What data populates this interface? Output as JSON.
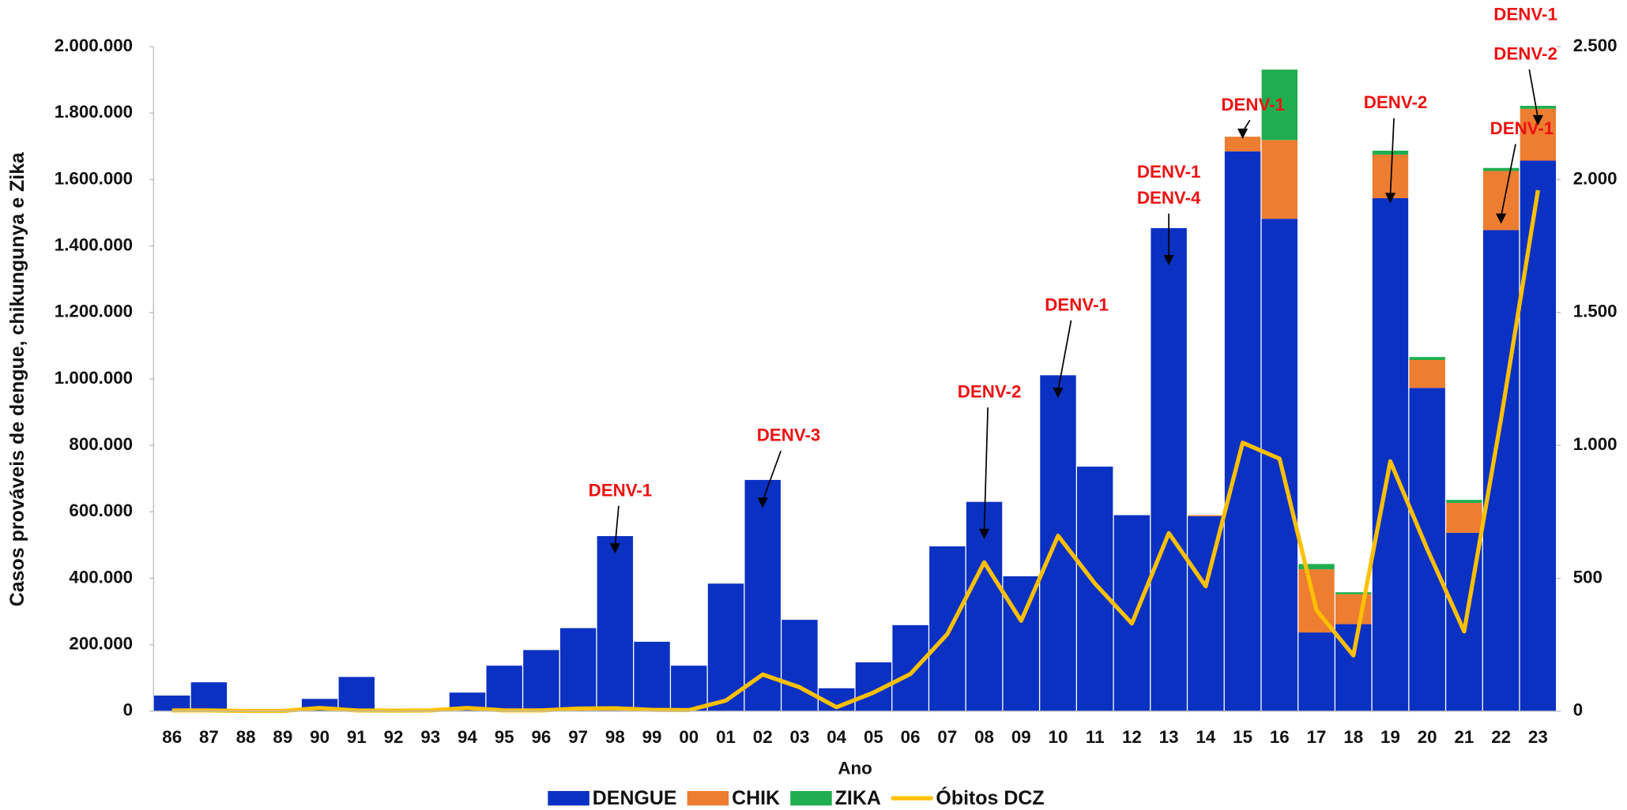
{
  "chart_data": {
    "type": "bar",
    "stacked": true,
    "x_label": "Ano",
    "y_label": "Casos prováveis de dengue, chikungunya e Zika",
    "categories": [
      "86",
      "87",
      "88",
      "89",
      "90",
      "91",
      "92",
      "93",
      "94",
      "95",
      "96",
      "97",
      "98",
      "99",
      "00",
      "01",
      "02",
      "03",
      "04",
      "05",
      "06",
      "07",
      "08",
      "09",
      "10",
      "11",
      "12",
      "13",
      "14",
      "15",
      "16",
      "17",
      "18",
      "19",
      "20",
      "21",
      "22",
      "23"
    ],
    "series": [
      {
        "name": "DENGUE",
        "type": "bar",
        "color": "#0a31c2",
        "values": [
          47000,
          87000,
          0,
          0,
          37000,
          103000,
          0,
          6000,
          56000,
          137000,
          184000,
          250000,
          527000,
          209000,
          137000,
          384000,
          696000,
          275000,
          69000,
          147000,
          259000,
          496000,
          630000,
          406000,
          1011000,
          736000,
          590000,
          1454000,
          587000,
          1685000,
          1482000,
          237000,
          262000,
          1544000,
          973000,
          537000,
          1448000,
          1657000
        ]
      },
      {
        "name": "CHIK",
        "type": "bar",
        "color": "#ed7d31",
        "values": [
          null,
          null,
          null,
          null,
          null,
          null,
          null,
          null,
          null,
          null,
          null,
          null,
          null,
          null,
          null,
          null,
          null,
          null,
          null,
          null,
          null,
          null,
          null,
          null,
          null,
          null,
          null,
          null,
          3000,
          44000,
          237000,
          190000,
          90000,
          131000,
          84000,
          90000,
          178000,
          156000
        ]
      },
      {
        "name": "ZIKA",
        "type": "bar",
        "color": "#1fae4f",
        "values": [
          null,
          null,
          null,
          null,
          null,
          null,
          null,
          null,
          null,
          null,
          null,
          null,
          null,
          null,
          null,
          null,
          null,
          null,
          null,
          null,
          null,
          null,
          null,
          null,
          null,
          null,
          null,
          null,
          null,
          null,
          212000,
          16000,
          6000,
          12000,
          9000,
          9000,
          9000,
          9000
        ]
      },
      {
        "name": "Óbitos DCZ",
        "type": "line",
        "axis": "y2",
        "color": "#ffc000",
        "values": [
          3,
          3,
          1,
          1,
          12,
          3,
          2,
          3,
          12,
          3,
          3,
          10,
          11,
          5,
          4,
          40,
          138,
          90,
          15,
          70,
          140,
          290,
          560,
          340,
          660,
          480,
          330,
          670,
          470,
          1010,
          950,
          380,
          210,
          940,
          610,
          300,
          1100,
          1960
        ]
      }
    ],
    "ylim": [
      0,
      2000000
    ],
    "yticks": [
      0,
      {
        "value": 200000,
        "label": "200.000"
      },
      {
        "value": 400000,
        "label": "400.000"
      },
      {
        "value": 600000,
        "label": "600.000"
      },
      {
        "value": 800000,
        "label": "800.000"
      },
      {
        "value": 1000000,
        "label": "1.000.000"
      },
      {
        "value": 1200000,
        "label": "1.200.000"
      },
      {
        "value": 1400000,
        "label": "1.400.000"
      },
      {
        "value": 1600000,
        "label": "1.600.000"
      },
      {
        "value": 1800000,
        "label": "1.800.000"
      },
      {
        "value": 2000000,
        "label": "2.000.000"
      }
    ],
    "y2lim": [
      0,
      2500
    ],
    "y2ticks": [
      0,
      500,
      {
        "value": 1000,
        "label": "1.000"
      },
      {
        "value": 1500,
        "label": "1.500"
      },
      {
        "value": 2000,
        "label": "2.000"
      },
      {
        "value": 2500,
        "label": "2.500"
      }
    ],
    "annotations": [
      {
        "category": "98",
        "lines": [
          "DENV-1"
        ]
      },
      {
        "category": "02",
        "lines": [
          "DENV-3"
        ]
      },
      {
        "category": "08",
        "lines": [
          "DENV-2"
        ]
      },
      {
        "category": "10",
        "lines": [
          "DENV-1"
        ]
      },
      {
        "category": "13",
        "lines": [
          "DENV-1",
          "DENV-4"
        ]
      },
      {
        "category": "15",
        "lines": [
          "DENV-1"
        ]
      },
      {
        "category": "19",
        "lines": [
          "DENV-2"
        ]
      },
      {
        "category": "22",
        "lines": [
          "DENV-1"
        ]
      },
      {
        "category": "23",
        "lines": [
          "DENV-1",
          "DENV-2"
        ]
      }
    ]
  }
}
